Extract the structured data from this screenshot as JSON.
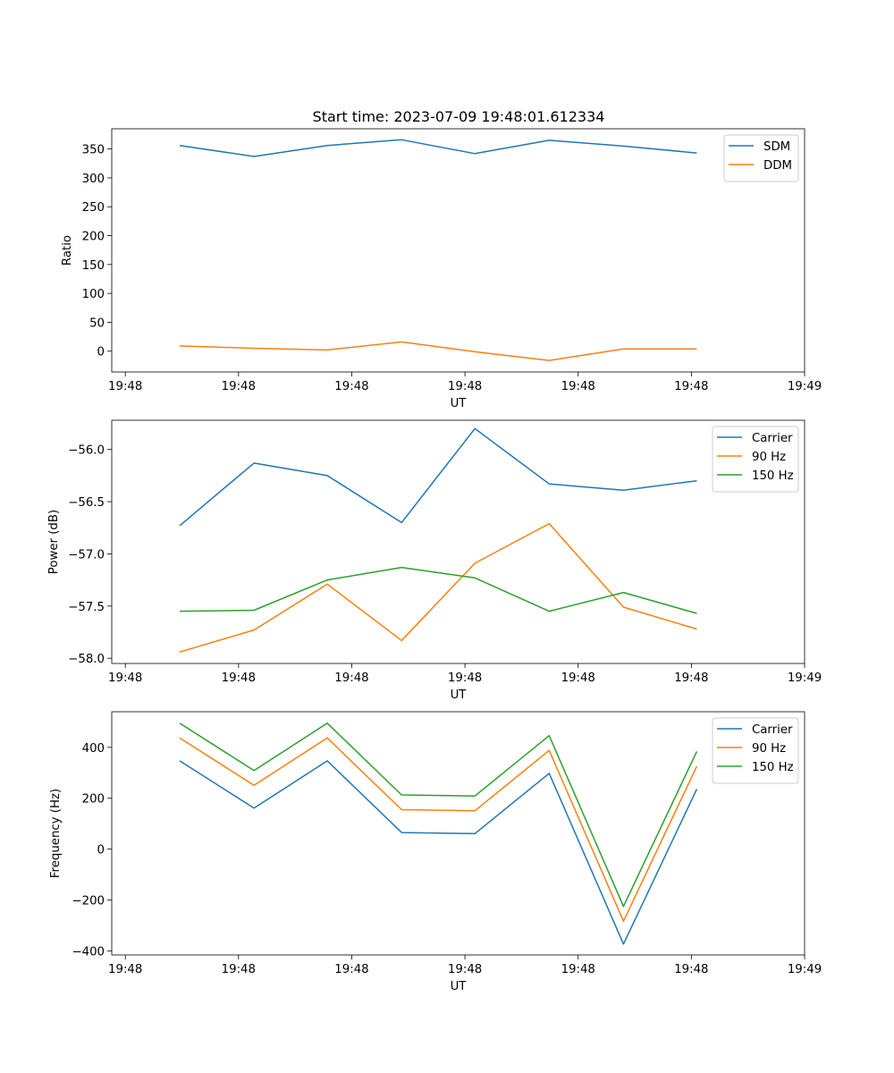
{
  "figure_title": "Start time: 2023-07-09 19:48:01.612334",
  "colors": {
    "blue": "#1f77b4",
    "orange": "#ff7f0e",
    "green": "#2ca02c"
  },
  "x_axis": {
    "label": "UT",
    "tick_values": [
      0,
      1.25,
      2.5,
      3.75,
      5,
      6.25,
      7.5
    ],
    "tick_labels": [
      "19:48",
      "19:48",
      "19:48",
      "19:48",
      "19:48",
      "19:48",
      "19:49"
    ],
    "range": [
      -0.15,
      7.5
    ]
  },
  "chart_data": [
    {
      "type": "line",
      "title": "Start time: 2023-07-09 19:48:01.612334",
      "xlabel": "UT",
      "ylabel": "Ratio",
      "x": [
        0.6,
        1.42,
        2.23,
        3.05,
        3.86,
        4.68,
        5.5,
        6.31
      ],
      "ylim": [
        -36,
        385
      ],
      "yticks": [
        0,
        50,
        100,
        150,
        200,
        250,
        300,
        350
      ],
      "ytick_labels": [
        "0",
        "50",
        "100",
        "150",
        "200",
        "250",
        "300",
        "350"
      ],
      "legend_position": "top-right",
      "series": [
        {
          "name": "SDM",
          "color": "#1f77b4",
          "values": [
            356,
            337,
            356,
            366,
            342,
            365,
            355,
            343
          ]
        },
        {
          "name": "DDM",
          "color": "#ff7f0e",
          "values": [
            9,
            5,
            2,
            16,
            -1,
            -16,
            4,
            4
          ]
        }
      ]
    },
    {
      "type": "line",
      "xlabel": "UT",
      "ylabel": "Power (dB)",
      "x": [
        0.6,
        1.42,
        2.23,
        3.05,
        3.86,
        4.68,
        5.5,
        6.31
      ],
      "ylim": [
        -58.05,
        -55.72
      ],
      "yticks": [
        -58.0,
        -57.5,
        -57.0,
        -56.5,
        -56.0
      ],
      "ytick_labels": [
        "−58.0",
        "−57.5",
        "−57.0",
        "−56.5",
        "−56.0"
      ],
      "legend_position": "top-right",
      "series": [
        {
          "name": "Carrier",
          "color": "#1f77b4",
          "values": [
            -56.73,
            -56.13,
            -56.25,
            -56.7,
            -55.8,
            -56.33,
            -56.39,
            -56.3
          ]
        },
        {
          "name": "90 Hz",
          "color": "#ff7f0e",
          "values": [
            -57.94,
            -57.73,
            -57.29,
            -57.83,
            -57.09,
            -56.71,
            -57.51,
            -57.72
          ]
        },
        {
          "name": "150 Hz",
          "color": "#2ca02c",
          "values": [
            -57.55,
            -57.54,
            -57.25,
            -57.13,
            -57.23,
            -57.55,
            -57.37,
            -57.57
          ]
        }
      ]
    },
    {
      "type": "line",
      "xlabel": "UT",
      "ylabel": "Frequency (Hz)",
      "x": [
        0.6,
        1.42,
        2.23,
        3.05,
        3.86,
        4.68,
        5.5,
        6.31
      ],
      "ylim": [
        -416,
        540
      ],
      "yticks": [
        -400,
        -200,
        0,
        200,
        400
      ],
      "ytick_labels": [
        "−400",
        "−200",
        "0",
        "200",
        "400"
      ],
      "legend_position": "top-right",
      "series": [
        {
          "name": "Carrier",
          "color": "#1f77b4",
          "values": [
            347,
            161,
            347,
            65,
            61,
            298,
            -373,
            236
          ]
        },
        {
          "name": "90 Hz",
          "color": "#ff7f0e",
          "values": [
            437,
            251,
            437,
            155,
            151,
            388,
            -283,
            326
          ]
        },
        {
          "name": "150 Hz",
          "color": "#2ca02c",
          "values": [
            495,
            309,
            495,
            213,
            209,
            446,
            -225,
            384
          ]
        }
      ]
    }
  ]
}
